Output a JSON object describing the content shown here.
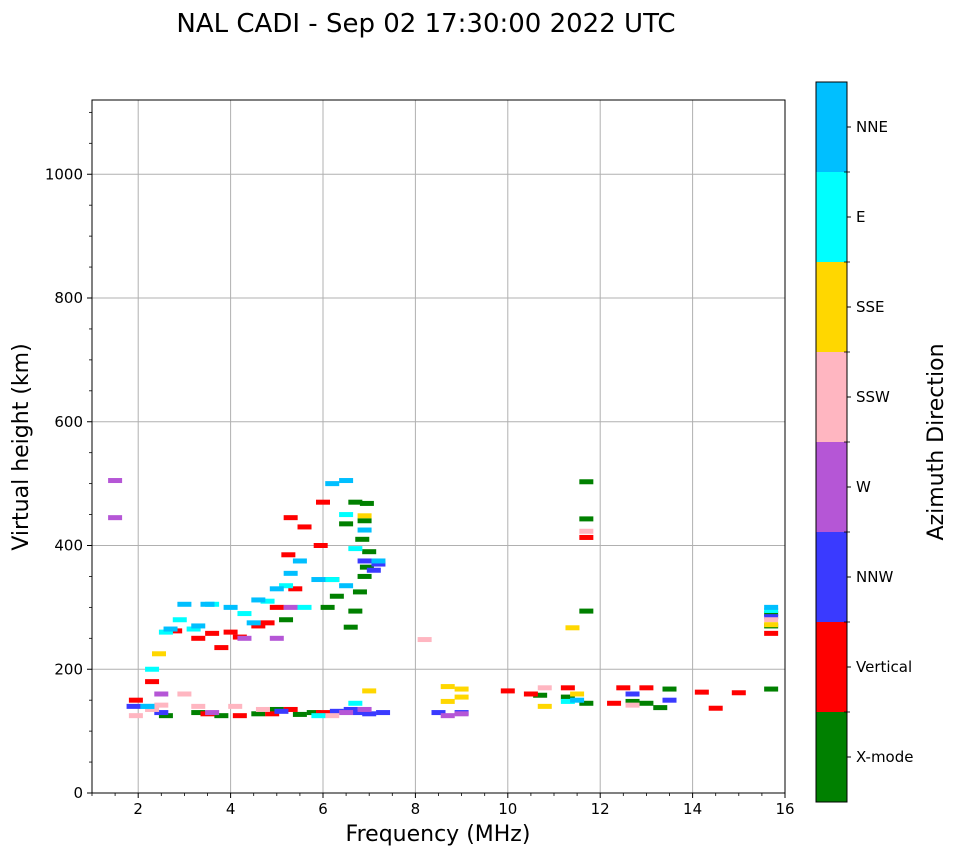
{
  "chart_data": {
    "type": "scatter",
    "title": "NAL CADI - Sep 02 17:30:00 2022 UTC",
    "xlabel": "Frequency (MHz)",
    "ylabel": "Virtual height (km)",
    "xlim": [
      1,
      16
    ],
    "ylim": [
      0,
      1120
    ],
    "x_ticks": [
      2,
      4,
      6,
      8,
      10,
      12,
      14,
      16
    ],
    "y_ticks": [
      0,
      200,
      400,
      600,
      800,
      1000
    ],
    "grid": true,
    "colorbar": {
      "label": "Azimuth Direction",
      "categories": [
        {
          "name": "X-mode",
          "color": "#008000"
        },
        {
          "name": "Vertical",
          "color": "#ff0000"
        },
        {
          "name": "NNW",
          "color": "#3a3aff"
        },
        {
          "name": "W",
          "color": "#b556d6"
        },
        {
          "name": "SSW",
          "color": "#ffb6c1"
        },
        {
          "name": "SSE",
          "color": "#ffd700"
        },
        {
          "name": "E",
          "color": "#00ffff"
        },
        {
          "name": "NNE",
          "color": "#00bfff"
        }
      ]
    },
    "series": [
      {
        "name": "X-mode",
        "points": [
          [
            2.6,
            125
          ],
          [
            3.3,
            130
          ],
          [
            3.8,
            125
          ],
          [
            4.6,
            128
          ],
          [
            5.0,
            135
          ],
          [
            5.5,
            127
          ],
          [
            5.8,
            130
          ],
          [
            6.6,
            268
          ],
          [
            6.7,
            294
          ],
          [
            6.8,
            325
          ],
          [
            6.9,
            350
          ],
          [
            6.95,
            365
          ],
          [
            7.0,
            390
          ],
          [
            6.85,
            410
          ],
          [
            6.9,
            440
          ],
          [
            6.7,
            470
          ],
          [
            6.95,
            468
          ],
          [
            6.5,
            435
          ],
          [
            6.3,
            318
          ],
          [
            6.1,
            300
          ],
          [
            10.7,
            158
          ],
          [
            11.3,
            155
          ],
          [
            11.7,
            145
          ],
          [
            11.7,
            294
          ],
          [
            11.7,
            443
          ],
          [
            11.7,
            503
          ],
          [
            12.7,
            148
          ],
          [
            13.0,
            145
          ],
          [
            13.3,
            138
          ],
          [
            13.5,
            168
          ],
          [
            15.7,
            168
          ],
          [
            15.7,
            290
          ],
          [
            15.7,
            270
          ],
          [
            5.2,
            280
          ],
          [
            6.2,
            345
          ]
        ]
      },
      {
        "name": "Vertical",
        "points": [
          [
            1.95,
            150
          ],
          [
            2.3,
            180
          ],
          [
            2.8,
            262
          ],
          [
            3.3,
            250
          ],
          [
            3.6,
            258
          ],
          [
            4.0,
            260
          ],
          [
            4.2,
            252
          ],
          [
            4.6,
            270
          ],
          [
            4.8,
            275
          ],
          [
            5.0,
            300
          ],
          [
            5.25,
            385
          ],
          [
            5.3,
            445
          ],
          [
            5.4,
            330
          ],
          [
            5.6,
            430
          ],
          [
            5.95,
            400
          ],
          [
            6.0,
            470
          ],
          [
            3.5,
            128
          ],
          [
            4.2,
            125
          ],
          [
            4.9,
            128
          ],
          [
            5.3,
            135
          ],
          [
            6.0,
            130
          ],
          [
            10.0,
            165
          ],
          [
            10.5,
            160
          ],
          [
            11.3,
            170
          ],
          [
            11.7,
            413
          ],
          [
            12.5,
            170
          ],
          [
            13.0,
            170
          ],
          [
            12.3,
            145
          ],
          [
            14.2,
            163
          ],
          [
            14.5,
            137
          ],
          [
            15.0,
            162
          ],
          [
            15.7,
            258
          ],
          [
            3.8,
            235
          ]
        ]
      },
      {
        "name": "NNW",
        "points": [
          [
            1.9,
            140
          ],
          [
            2.5,
            130
          ],
          [
            6.3,
            132
          ],
          [
            6.6,
            135
          ],
          [
            7.0,
            128
          ],
          [
            7.3,
            130
          ],
          [
            7.1,
            360
          ],
          [
            7.2,
            370
          ],
          [
            6.9,
            375
          ],
          [
            8.5,
            130
          ],
          [
            9.0,
            130
          ],
          [
            12.7,
            160
          ],
          [
            13.5,
            150
          ],
          [
            15.7,
            285
          ],
          [
            5.1,
            132
          ],
          [
            6.8,
            130
          ]
        ]
      },
      {
        "name": "W",
        "points": [
          [
            1.5,
            505
          ],
          [
            1.5,
            445
          ],
          [
            2.5,
            160
          ],
          [
            3.6,
            130
          ],
          [
            4.3,
            250
          ],
          [
            5.0,
            250
          ],
          [
            6.9,
            135
          ],
          [
            8.7,
            125
          ],
          [
            9.0,
            128
          ],
          [
            5.3,
            300
          ],
          [
            6.5,
            130
          ]
        ]
      },
      {
        "name": "SSW",
        "points": [
          [
            1.95,
            125
          ],
          [
            2.3,
            135
          ],
          [
            2.5,
            142
          ],
          [
            3.0,
            160
          ],
          [
            3.3,
            140
          ],
          [
            4.1,
            140
          ],
          [
            4.7,
            135
          ],
          [
            8.2,
            248
          ],
          [
            10.8,
            170
          ],
          [
            11.7,
            423
          ],
          [
            12.7,
            142
          ],
          [
            15.7,
            280
          ],
          [
            6.2,
            125
          ]
        ]
      },
      {
        "name": "SSE",
        "points": [
          [
            2.45,
            225
          ],
          [
            7.0,
            165
          ],
          [
            8.7,
            172
          ],
          [
            9.0,
            168
          ],
          [
            8.7,
            148
          ],
          [
            9.0,
            155
          ],
          [
            10.8,
            140
          ],
          [
            11.4,
            267
          ],
          [
            11.5,
            160
          ],
          [
            15.7,
            272
          ],
          [
            6.9,
            448
          ]
        ]
      },
      {
        "name": "E",
        "points": [
          [
            2.3,
            200
          ],
          [
            2.6,
            260
          ],
          [
            2.9,
            280
          ],
          [
            3.2,
            265
          ],
          [
            3.6,
            305
          ],
          [
            4.3,
            290
          ],
          [
            4.8,
            310
          ],
          [
            5.2,
            335
          ],
          [
            5.6,
            300
          ],
          [
            6.2,
            345
          ],
          [
            6.5,
            450
          ],
          [
            6.7,
            395
          ],
          [
            6.7,
            145
          ],
          [
            11.3,
            148
          ],
          [
            15.7,
            295
          ],
          [
            2.2,
            140
          ],
          [
            5.9,
            125
          ]
        ]
      },
      {
        "name": "NNE",
        "points": [
          [
            2.2,
            140
          ],
          [
            2.7,
            265
          ],
          [
            3.0,
            305
          ],
          [
            3.3,
            270
          ],
          [
            3.5,
            305
          ],
          [
            4.0,
            300
          ],
          [
            4.6,
            312
          ],
          [
            5.0,
            330
          ],
          [
            5.3,
            355
          ],
          [
            5.5,
            375
          ],
          [
            5.9,
            345
          ],
          [
            6.2,
            500
          ],
          [
            6.5,
            505
          ],
          [
            6.5,
            335
          ],
          [
            6.9,
            425
          ],
          [
            7.2,
            375
          ],
          [
            11.5,
            150
          ],
          [
            15.7,
            300
          ],
          [
            4.5,
            275
          ]
        ]
      }
    ]
  }
}
